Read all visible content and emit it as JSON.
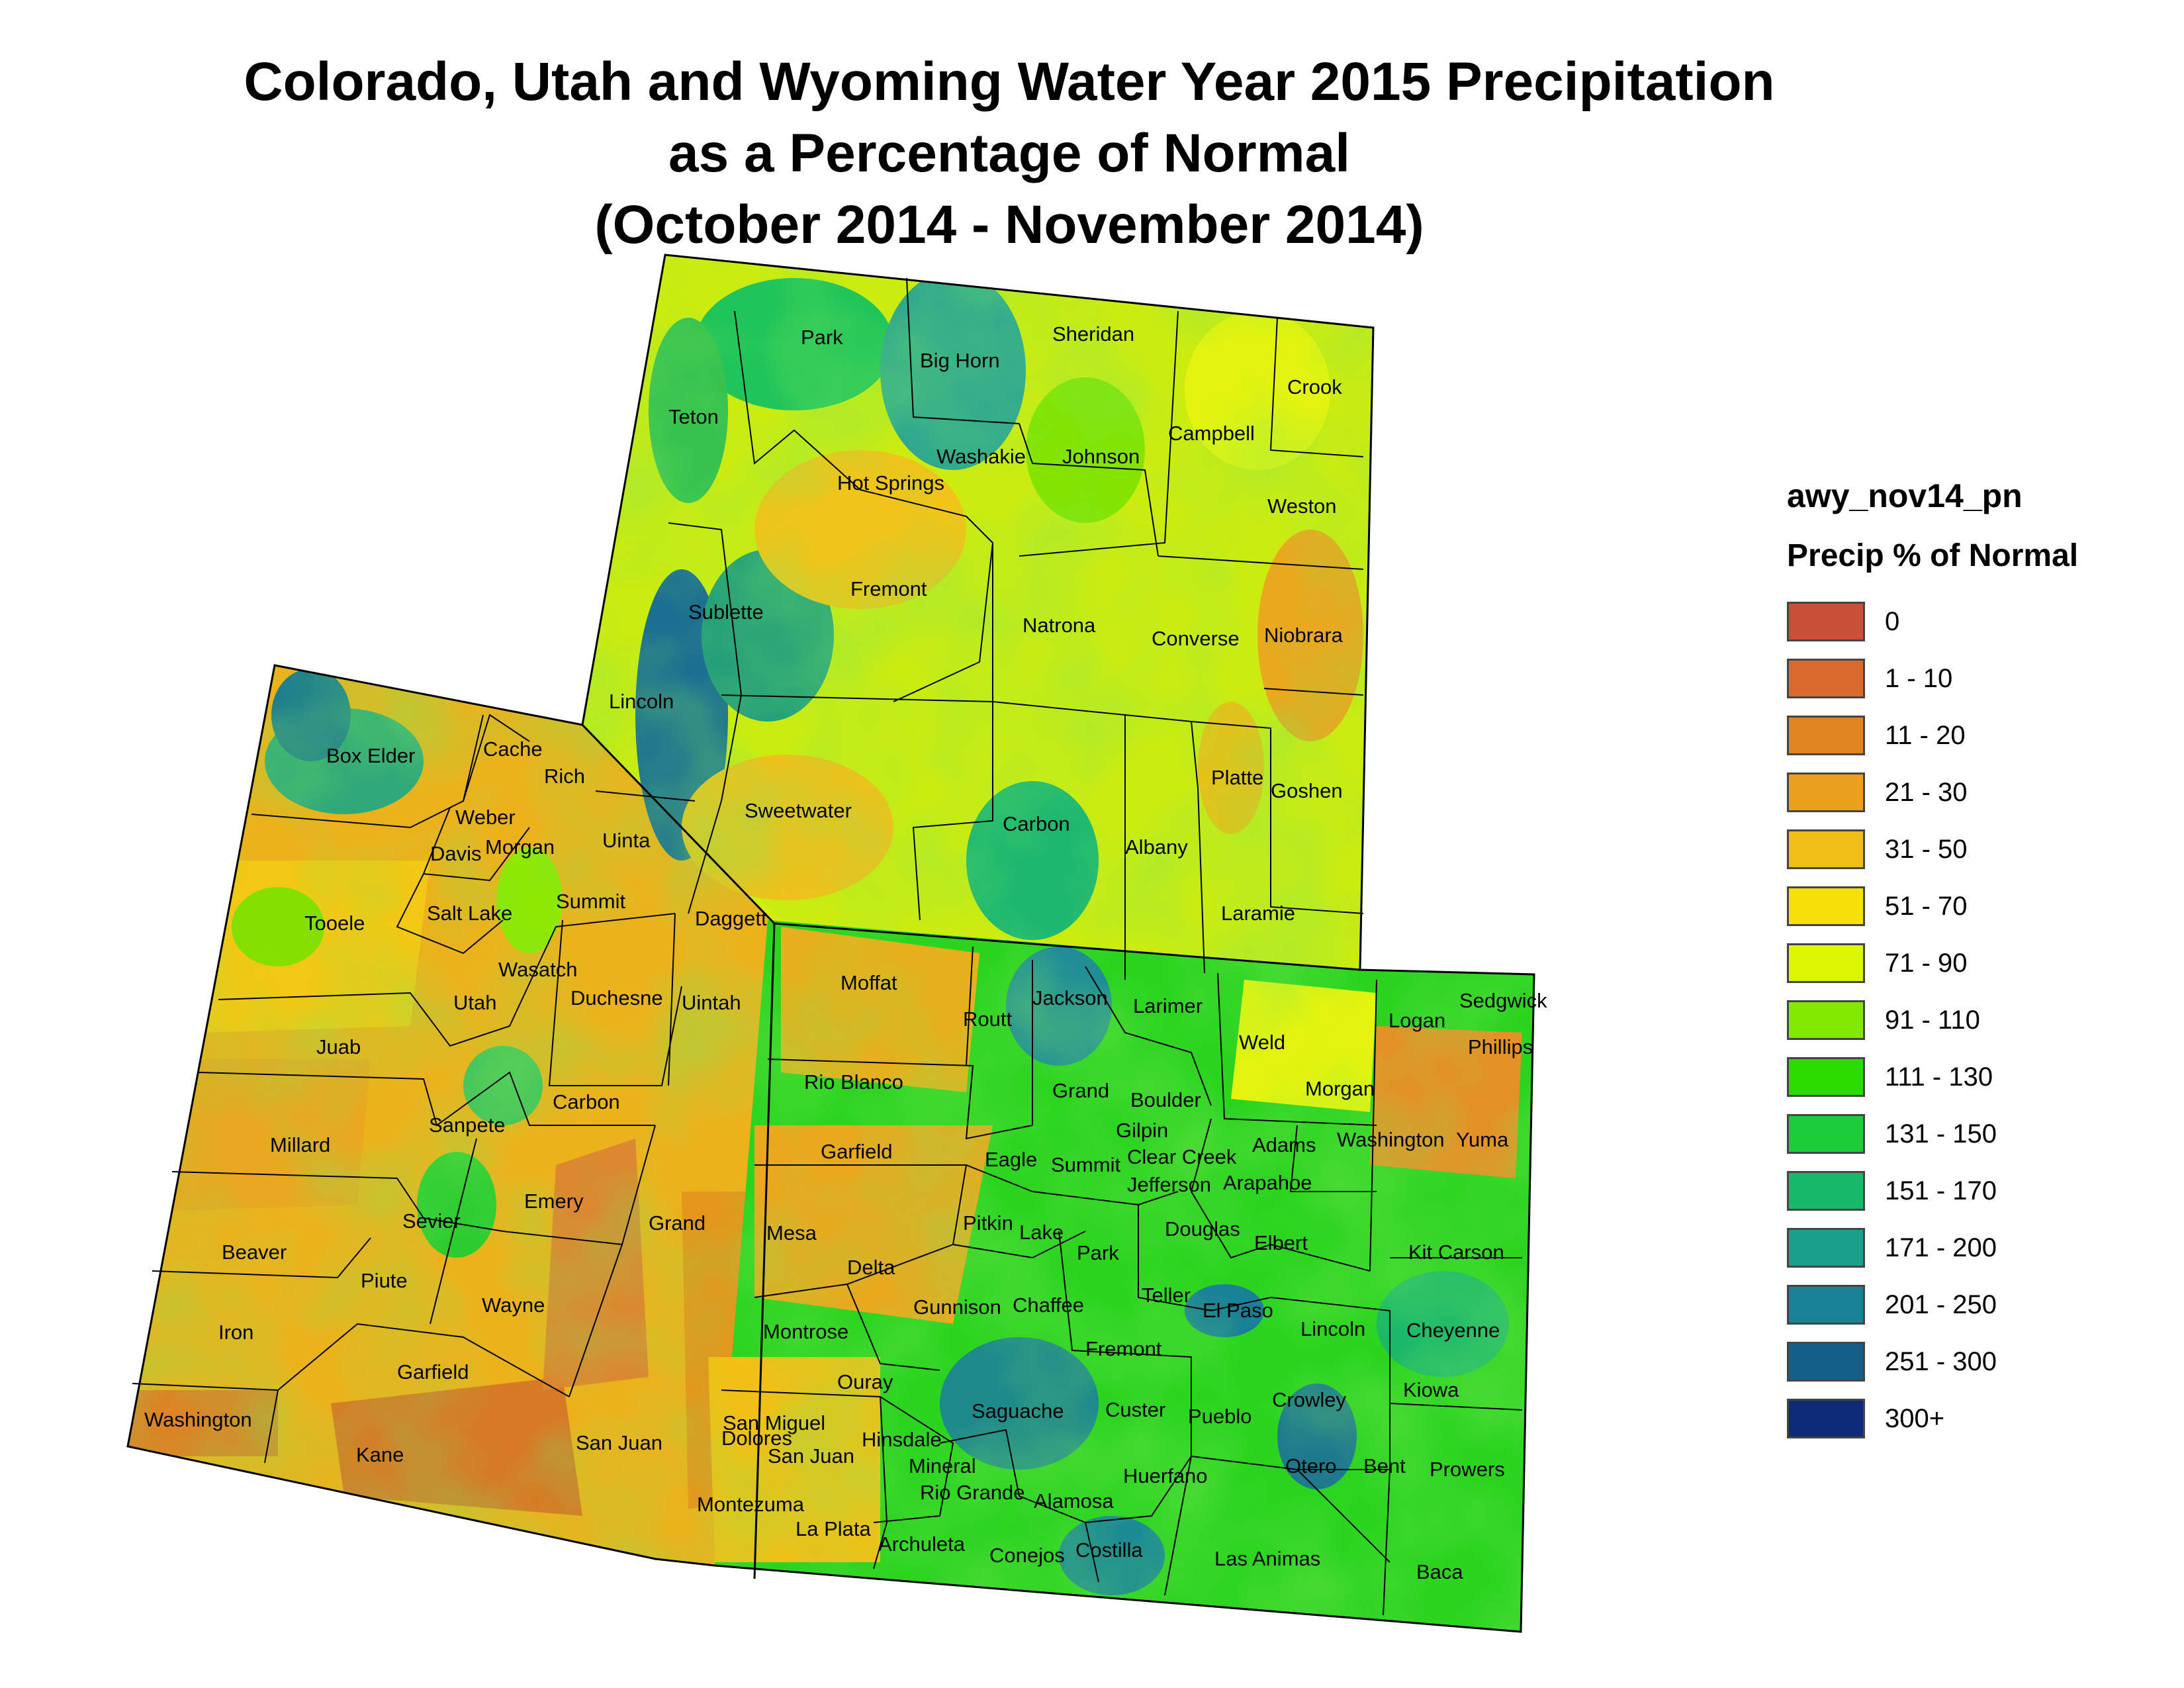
{
  "title": {
    "line1": "Colorado, Utah and Wyoming Water Year 2015 Precipitation",
    "line2": "as a Percentage of Normal",
    "line3": "(October 2014 - November 2014)"
  },
  "legend": {
    "layer_name": "awy_nov14_pn",
    "title": "Precip % of Normal",
    "items": [
      {
        "label": "0",
        "color": "#c8503a"
      },
      {
        "label": "1 - 10",
        "color": "#d86a2e"
      },
      {
        "label": "11 - 20",
        "color": "#e08422"
      },
      {
        "label": "21 - 30",
        "color": "#eaa01a"
      },
      {
        "label": "31 - 50",
        "color": "#f0be16"
      },
      {
        "label": "51 - 70",
        "color": "#f8e00a"
      },
      {
        "label": "71 - 90",
        "color": "#dcf500"
      },
      {
        "label": "91 - 110",
        "color": "#84e800"
      },
      {
        "label": "111 - 130",
        "color": "#2cdc00"
      },
      {
        "label": "131 - 150",
        "color": "#1ccc3a"
      },
      {
        "label": "151 - 170",
        "color": "#18b86a"
      },
      {
        "label": "171 - 200",
        "color": "#1aa08a"
      },
      {
        "label": "201 - 250",
        "color": "#1a8098"
      },
      {
        "label": "251 - 300",
        "color": "#145e8c"
      },
      {
        "label": "300+",
        "color": "#0c2a78"
      }
    ]
  },
  "counties": {
    "wyoming": [
      "Park",
      "Big Horn",
      "Sheridan",
      "Crook",
      "Teton",
      "Washakie",
      "Johnson",
      "Campbell",
      "Hot Springs",
      "Weston",
      "Fremont",
      "Natrona",
      "Converse",
      "Niobrara",
      "Sublette",
      "Lincoln",
      "Sweetwater",
      "Carbon",
      "Platte",
      "Goshen",
      "Uinta",
      "Albany",
      "Laramie"
    ],
    "utah": [
      "Box Elder",
      "Cache",
      "Rich",
      "Weber",
      "Davis",
      "Morgan",
      "Tooele",
      "Salt Lake",
      "Summit",
      "Daggett",
      "Wasatch",
      "Utah",
      "Duchesne",
      "Uintah",
      "Juab",
      "Millard",
      "Sanpete",
      "Carbon",
      "Emery",
      "Sevier",
      "Grand",
      "Beaver",
      "Piute",
      "Wayne",
      "Iron",
      "Garfield",
      "Washington",
      "Kane",
      "San Juan"
    ],
    "colorado": [
      "Moffat",
      "Jackson",
      "Larimer",
      "Logan",
      "Sedgwick",
      "Phillips",
      "Routt",
      "Weld",
      "Rio Blanco",
      "Grand",
      "Boulder",
      "Morgan",
      "Gilpin",
      "Garfield",
      "Eagle",
      "Summit",
      "Clear Creek",
      "Adams",
      "Washington",
      "Yuma",
      "Jefferson",
      "Arapahoe",
      "Mesa",
      "Pitkin",
      "Lake",
      "Douglas",
      "Elbert",
      "Kit Carson",
      "Delta",
      "Park",
      "Teller",
      "El Paso",
      "Gunnison",
      "Chaffee",
      "Lincoln",
      "Cheyenne",
      "Montrose",
      "Fremont",
      "San Miguel",
      "Ouray",
      "Saguache",
      "Custer",
      "Pueblo",
      "Crowley",
      "Kiowa",
      "Dolores",
      "Hinsdale",
      "San Juan",
      "Mineral",
      "Otero",
      "Bent",
      "Prowers",
      "Huerfano",
      "Rio Grande",
      "Alamosa",
      "Montezuma",
      "La Plata",
      "Archuleta",
      "Conejos",
      "Costilla",
      "Las Animas",
      "Baca"
    ]
  }
}
